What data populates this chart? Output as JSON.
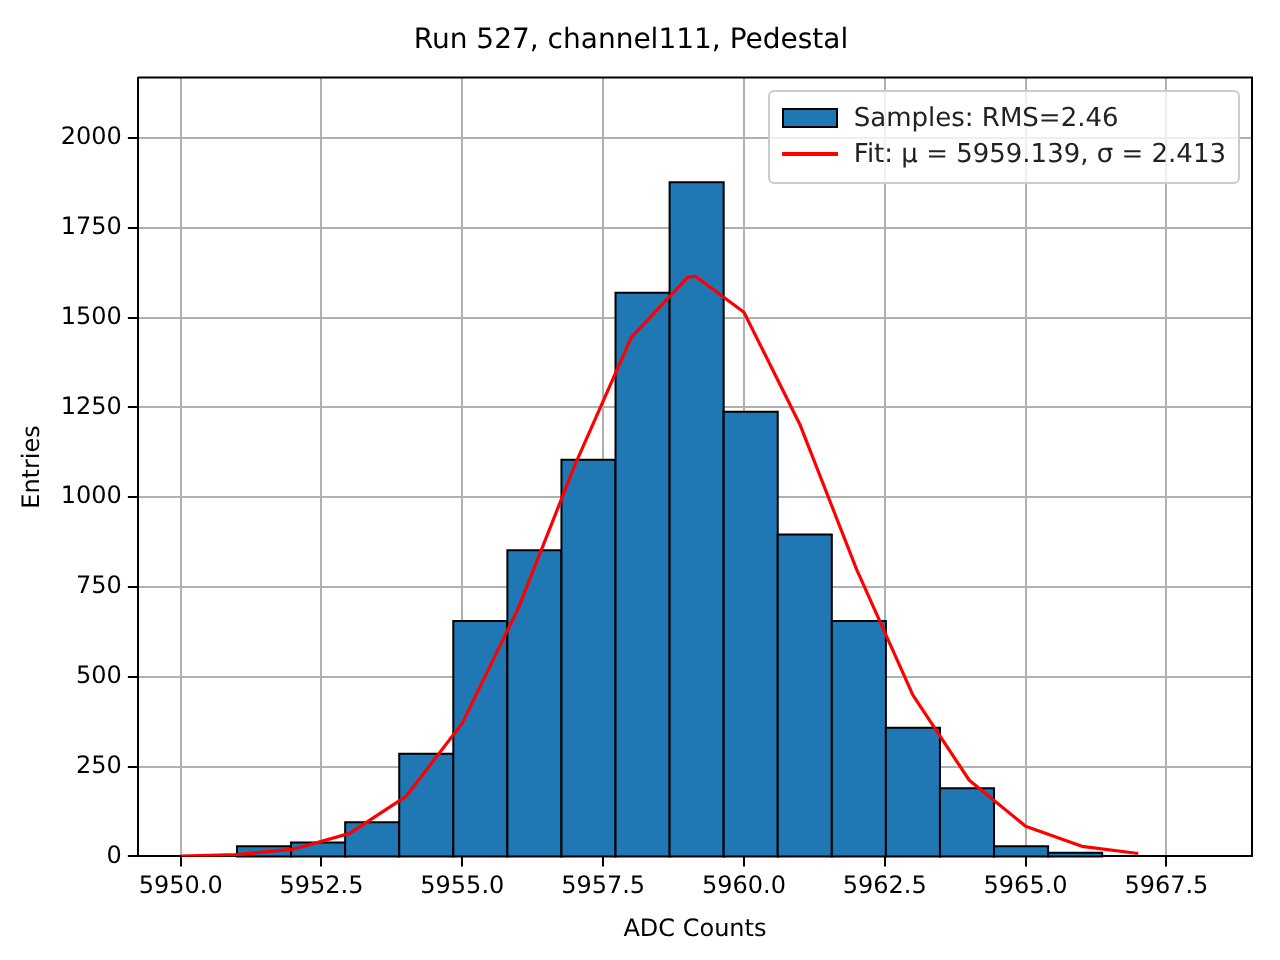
{
  "chart_data": {
    "type": "histogram",
    "title": "Run 527, channel111, Pedestal",
    "xlabel": "ADC Counts",
    "ylabel": "Entries",
    "bins": [
      5951.0,
      5951.96,
      5952.92,
      5953.88,
      5954.84,
      5955.8,
      5956.76,
      5957.72,
      5958.68,
      5959.64,
      5960.6,
      5961.56,
      5962.52,
      5963.48,
      5964.44,
      5965.4,
      5966.36
    ],
    "series": [
      {
        "name": "Samples: RMS=2.46",
        "color": "#1f77b4",
        "values": [
          28,
          39,
          95,
          286,
          655,
          852,
          1104,
          1569,
          1877,
          1238,
          896,
          655,
          358,
          190,
          28,
          10
        ]
      },
      {
        "name": "Fit: μ = 5959.139, σ = 2.413",
        "type": "line",
        "color": "#ff0000",
        "x": [
          5950,
          5951,
          5952,
          5953,
          5954,
          5955,
          5956,
          5957,
          5958,
          5959,
          5959.139,
          5960,
          5961,
          5962,
          5963,
          5964,
          5965,
          5966,
          5967
        ],
        "values": [
          1,
          5,
          20,
          64,
          167,
          371,
          693,
          1090,
          1445,
          1612,
          1615,
          1515,
          1200,
          799,
          449,
          212,
          84,
          28,
          8
        ]
      }
    ],
    "xlim": [
      5949.24,
      5969.02
    ],
    "xticks": [
      {
        "value": 5950,
        "label": "5950.0"
      },
      {
        "value": 5952.5,
        "label": "5952.5"
      },
      {
        "value": 5955,
        "label": "5955.0"
      },
      {
        "value": 5957.5,
        "label": "5957.5"
      },
      {
        "value": 5960,
        "label": "5960.0"
      },
      {
        "value": 5962.5,
        "label": "5962.5"
      },
      {
        "value": 5965,
        "label": "5965.0"
      },
      {
        "value": 5967.5,
        "label": "5967.5"
      }
    ],
    "ylim": [
      0,
      2168
    ],
    "yticks": [
      0,
      250,
      500,
      750,
      1000,
      1250,
      1500,
      1750,
      2000
    ],
    "grid": true,
    "legend": "top right"
  }
}
